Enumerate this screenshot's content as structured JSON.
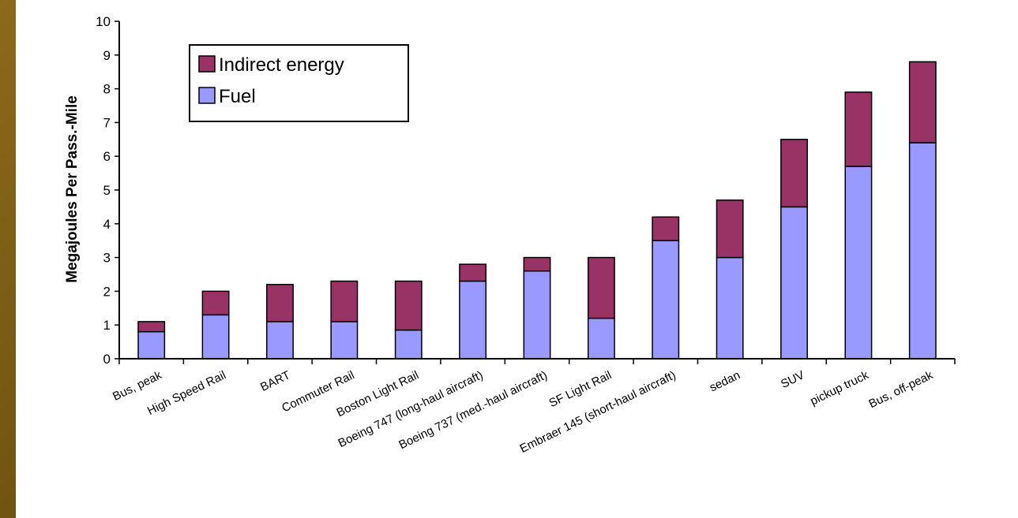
{
  "chart_data": {
    "type": "bar",
    "stacked": true,
    "title": "",
    "xlabel": "",
    "ylabel": "Megajoules Per Pass.-Mile",
    "ylim": [
      0,
      10
    ],
    "yticks": [
      "0",
      "1",
      "2",
      "3",
      "4",
      "5",
      "6",
      "7",
      "8",
      "9",
      "10"
    ],
    "grid": false,
    "legend_position": "top-left",
    "categories": [
      "Bus, peak",
      "High Speed Rail",
      "BART",
      "Commuter Rail",
      "Boston Light Rail",
      "Boeing 747 (long-haul aircraft)",
      "Boeing 737 (med.-haul aircraft)",
      "SF Light Rail",
      "Embraer 145 (short-haul aircraft)",
      "sedan",
      "SUV",
      "pickup truck",
      "Bus, off-peak"
    ],
    "series": [
      {
        "name": "Fuel",
        "color": "#9999ff",
        "values": [
          0.8,
          1.3,
          1.1,
          1.1,
          0.85,
          2.3,
          2.6,
          1.2,
          3.5,
          3.0,
          4.5,
          5.7,
          6.4
        ]
      },
      {
        "name": "Indirect energy",
        "color": "#993366",
        "values": [
          0.3,
          0.7,
          1.1,
          1.2,
          1.45,
          0.5,
          0.4,
          1.8,
          0.7,
          1.7,
          2.0,
          2.2,
          2.4
        ]
      }
    ],
    "legend": [
      {
        "name": "Indirect energy",
        "color": "#993366"
      },
      {
        "name": "Fuel",
        "color": "#9999ff"
      }
    ]
  }
}
